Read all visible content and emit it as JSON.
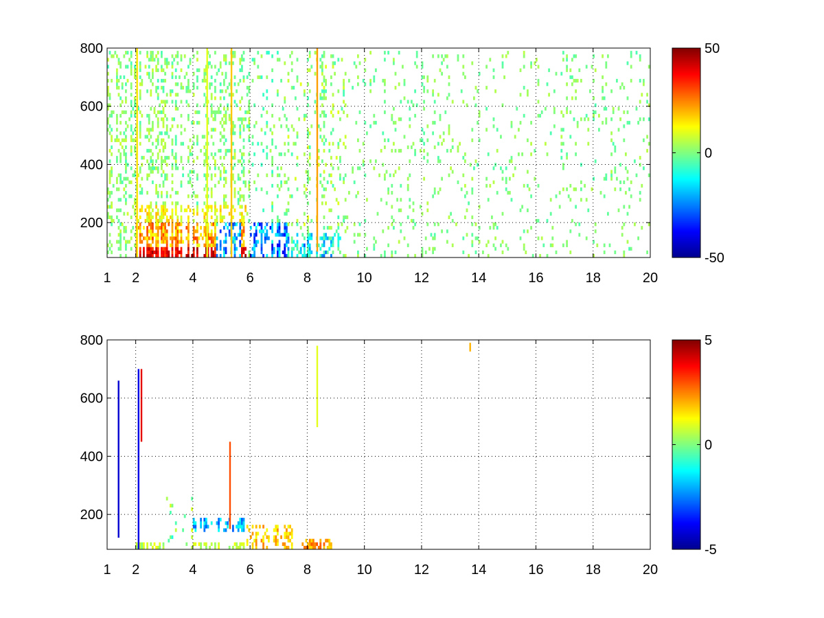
{
  "figure": {
    "background": "#ffffff"
  },
  "chart_data": [
    {
      "type": "heatmap",
      "panel": "top",
      "xlim": [
        1,
        20
      ],
      "ylim": [
        80,
        800
      ],
      "x_ticks": [
        "1",
        "2",
        "4",
        "6",
        "8",
        "10",
        "12",
        "14",
        "16",
        "18",
        "20"
      ],
      "x_tick_values": [
        1,
        2,
        4,
        6,
        8,
        10,
        12,
        14,
        16,
        18,
        20
      ],
      "y_ticks": [
        "200",
        "400",
        "600",
        "800"
      ],
      "y_tick_values": [
        200,
        400,
        600,
        800
      ],
      "grid": true,
      "grid_style": "dotted",
      "colormap": "jet",
      "colorbar": {
        "min": -50,
        "max": 50,
        "ticks": [
          "50",
          "0",
          "-50"
        ],
        "tick_values": [
          50,
          0,
          -50
        ]
      },
      "regions": [
        {
          "x": [
            1.0,
            6.0
          ],
          "y": [
            80,
            800
          ],
          "density": 0.35,
          "value_range": [
            -6,
            8
          ]
        },
        {
          "x": [
            6.0,
            7.3
          ],
          "y": [
            80,
            800
          ],
          "density": 0.18,
          "value_range": [
            -8,
            6
          ]
        },
        {
          "x": [
            7.3,
            9.5
          ],
          "y": [
            80,
            800
          ],
          "density": 0.22,
          "value_range": [
            -6,
            10
          ]
        },
        {
          "x": [
            9.5,
            20.0
          ],
          "y": [
            80,
            800
          ],
          "density": 0.1,
          "value_range": [
            -5,
            6
          ]
        },
        {
          "x": [
            2.0,
            5.9
          ],
          "y": [
            80,
            120
          ],
          "density": 0.95,
          "value_range": [
            30,
            48
          ]
        },
        {
          "x": [
            2.0,
            5.9
          ],
          "y": [
            120,
            200
          ],
          "density": 0.85,
          "value_range": [
            10,
            32
          ]
        },
        {
          "x": [
            2.0,
            5.9
          ],
          "y": [
            200,
            260
          ],
          "density": 0.6,
          "value_range": [
            5,
            20
          ]
        },
        {
          "x": [
            4.8,
            5.7
          ],
          "y": [
            80,
            200
          ],
          "density": 0.7,
          "value_range": [
            -35,
            -5
          ]
        },
        {
          "x": [
            6.0,
            7.3
          ],
          "y": [
            80,
            200
          ],
          "density": 0.75,
          "value_range": [
            -40,
            -10
          ]
        },
        {
          "x": [
            7.3,
            9.2
          ],
          "y": [
            80,
            160
          ],
          "density": 0.7,
          "value_range": [
            -30,
            0
          ]
        }
      ],
      "streaks": [
        {
          "x": 2.05,
          "y": [
            80,
            800
          ],
          "value": 15
        },
        {
          "x": 4.5,
          "y": [
            80,
            800
          ],
          "value": 10
        },
        {
          "x": 5.35,
          "y": [
            80,
            800
          ],
          "value": 18
        },
        {
          "x": 8.35,
          "y": [
            100,
            800
          ],
          "value": 22
        }
      ]
    },
    {
      "type": "heatmap",
      "panel": "bottom",
      "xlim": [
        1,
        20
      ],
      "ylim": [
        80,
        800
      ],
      "x_ticks": [
        "1",
        "2",
        "4",
        "6",
        "8",
        "10",
        "12",
        "14",
        "16",
        "18",
        "20"
      ],
      "x_tick_values": [
        1,
        2,
        4,
        6,
        8,
        10,
        12,
        14,
        16,
        18,
        20
      ],
      "y_ticks": [
        "200",
        "400",
        "600",
        "800"
      ],
      "y_tick_values": [
        200,
        400,
        600,
        800
      ],
      "grid": true,
      "grid_style": "dotted",
      "colormap": "jet",
      "colorbar": {
        "min": -5,
        "max": 5,
        "ticks": [
          "5",
          "0",
          "-5"
        ],
        "tick_values": [
          5,
          0,
          -5
        ]
      },
      "regions": [
        {
          "x": [
            1.8,
            5.9
          ],
          "y": [
            80,
            110
          ],
          "density": 0.75,
          "value_range": [
            0,
            1.2
          ]
        },
        {
          "x": [
            3.5,
            5.8
          ],
          "y": [
            140,
            190
          ],
          "density": 0.7,
          "value_range": [
            -3,
            -1
          ]
        },
        {
          "x": [
            5.9,
            7.5
          ],
          "y": [
            80,
            170
          ],
          "density": 0.6,
          "value_range": [
            1,
            2.5
          ]
        },
        {
          "x": [
            7.8,
            9.0
          ],
          "y": [
            80,
            115
          ],
          "density": 0.7,
          "value_range": [
            1.5,
            3
          ]
        },
        {
          "x": [
            3.0,
            4.0
          ],
          "y": [
            80,
            260
          ],
          "density": 0.15,
          "value_range": [
            -1,
            1
          ]
        }
      ],
      "streaks": [
        {
          "x": 1.4,
          "y": [
            120,
            660
          ],
          "value": -4.2
        },
        {
          "x": 2.1,
          "y": [
            80,
            700
          ],
          "value": -4
        },
        {
          "x": 2.2,
          "y": [
            450,
            700
          ],
          "value": 4
        },
        {
          "x": 5.3,
          "y": [
            150,
            450
          ],
          "value": 3
        },
        {
          "x": 8.35,
          "y": [
            500,
            780
          ],
          "value": 1
        },
        {
          "x": 13.7,
          "y": [
            760,
            790
          ],
          "value": 2
        }
      ]
    }
  ]
}
